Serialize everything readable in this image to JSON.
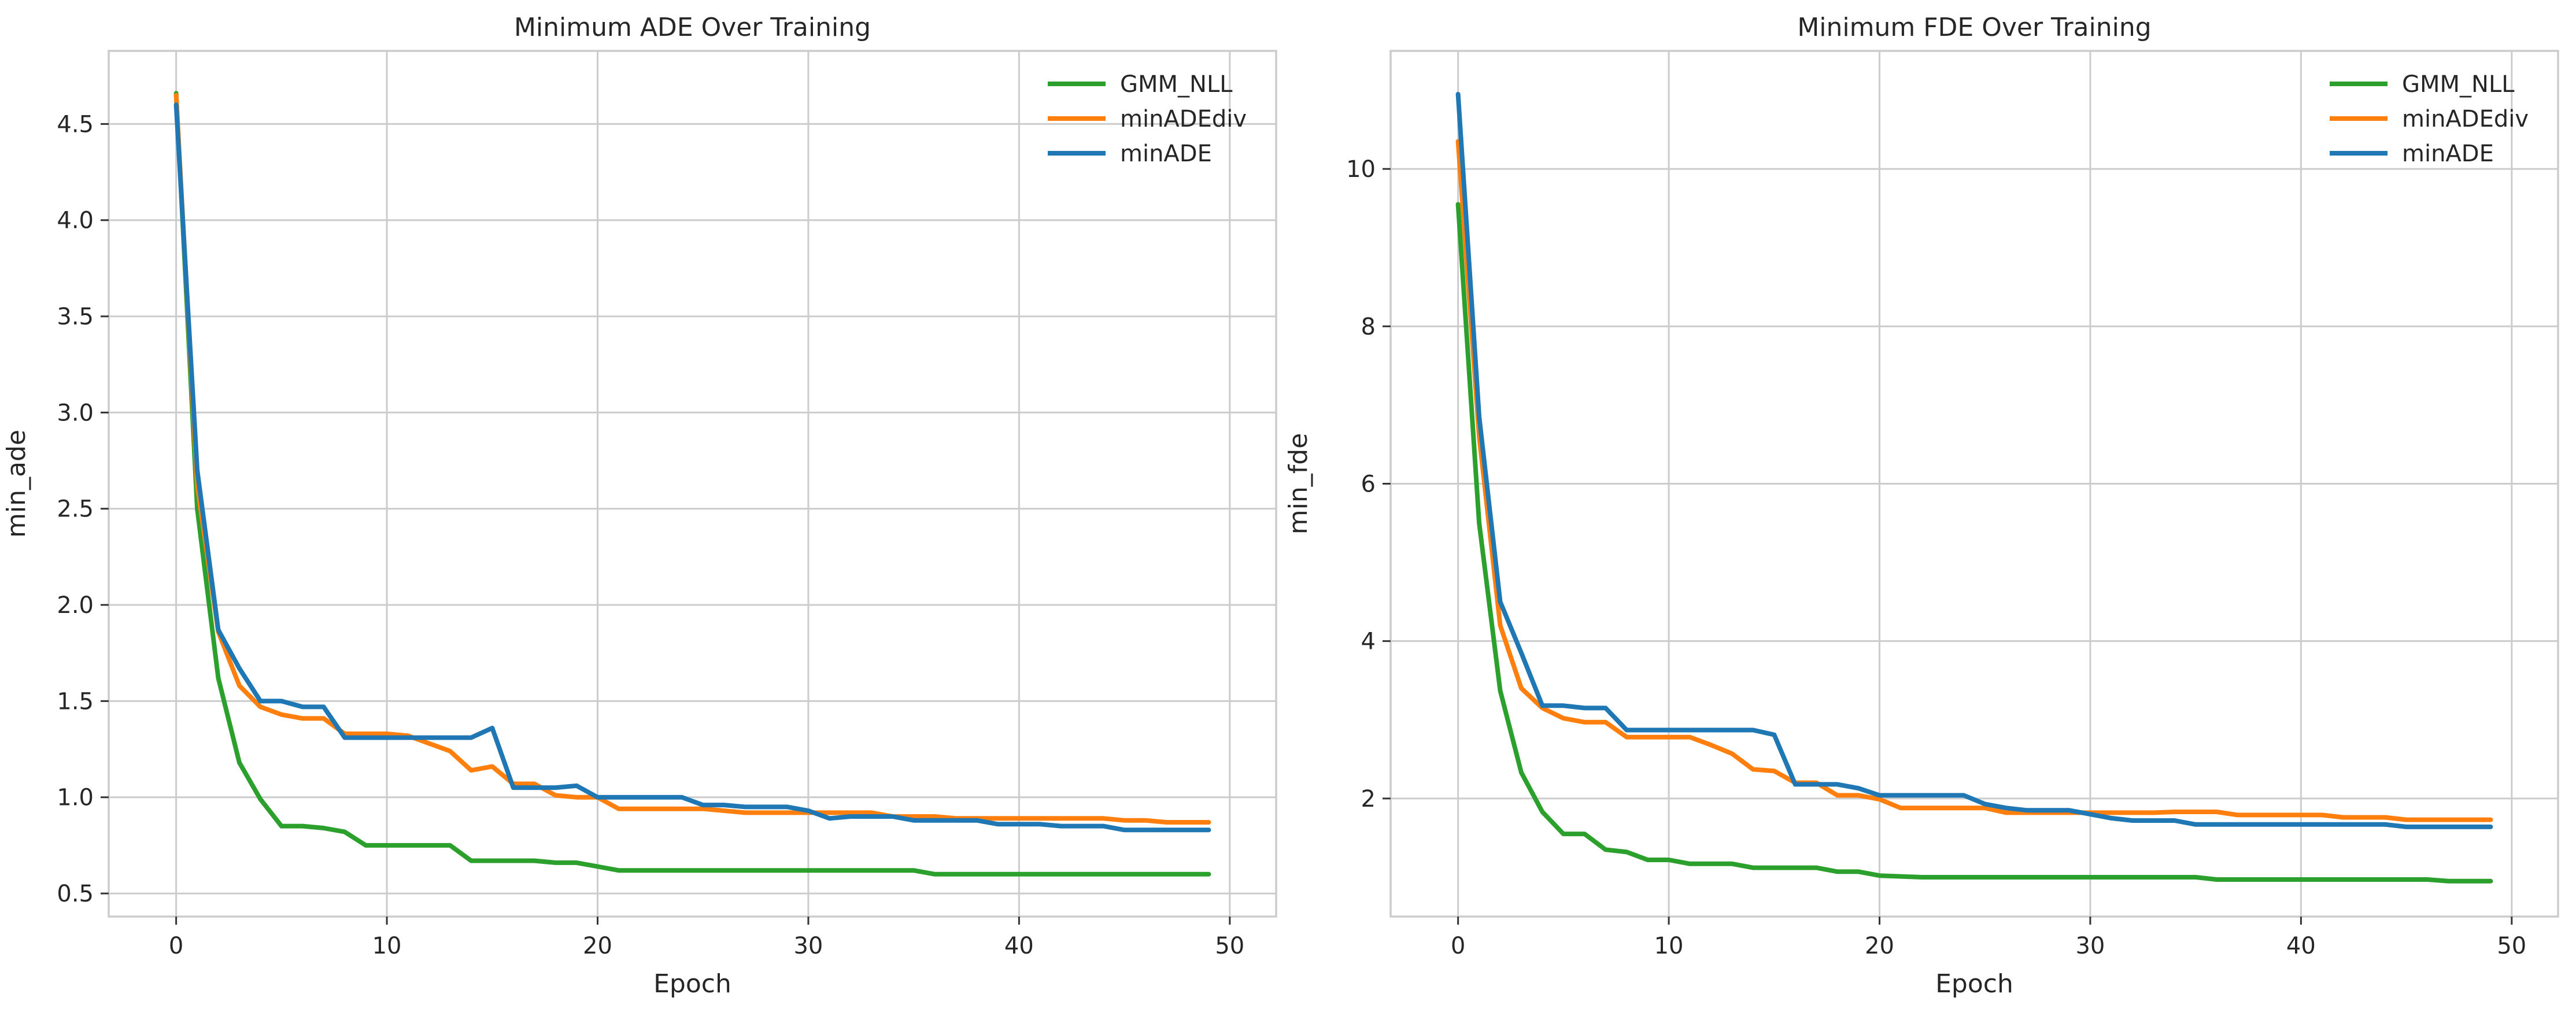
{
  "chart_data": [
    {
      "type": "line",
      "title": "Minimum ADE Over Training",
      "xlabel": "Epoch",
      "ylabel": "min_ade",
      "xlim": [
        -3.2,
        52.2
      ],
      "ylim": [
        0.38,
        4.88
      ],
      "xticks": [
        0,
        10,
        20,
        30,
        40,
        50
      ],
      "yticks": [
        0.5,
        1.0,
        1.5,
        2.0,
        2.5,
        3.0,
        3.5,
        4.0,
        4.5
      ],
      "ytick_labels": [
        "0.5",
        "1.0",
        "1.5",
        "2.0",
        "2.5",
        "3.0",
        "3.5",
        "4.0",
        "4.5"
      ],
      "grid": true,
      "legend_position": "top-right",
      "x": [
        0,
        1,
        2,
        3,
        4,
        5,
        6,
        7,
        8,
        9,
        10,
        11,
        12,
        13,
        14,
        15,
        16,
        17,
        18,
        19,
        20,
        21,
        22,
        23,
        24,
        25,
        26,
        27,
        28,
        29,
        30,
        31,
        32,
        33,
        34,
        35,
        36,
        37,
        38,
        39,
        40,
        41,
        42,
        43,
        44,
        45,
        46,
        47,
        48,
        49
      ],
      "series": [
        {
          "name": "GMM_NLL",
          "color": "#2ca02c",
          "values": [
            4.66,
            2.5,
            1.62,
            1.18,
            0.99,
            0.85,
            0.85,
            0.84,
            0.82,
            0.75,
            0.75,
            0.75,
            0.75,
            0.75,
            0.67,
            0.67,
            0.67,
            0.67,
            0.66,
            0.66,
            0.64,
            0.62,
            0.62,
            0.62,
            0.62,
            0.62,
            0.62,
            0.62,
            0.62,
            0.62,
            0.62,
            0.62,
            0.62,
            0.62,
            0.62,
            0.62,
            0.6,
            0.6,
            0.6,
            0.6,
            0.6,
            0.6,
            0.6,
            0.6,
            0.6,
            0.6,
            0.6,
            0.6,
            0.6,
            0.6
          ]
        },
        {
          "name": "minADEdiv",
          "color": "#ff7f0e",
          "values": [
            4.65,
            2.62,
            1.86,
            1.58,
            1.47,
            1.43,
            1.41,
            1.41,
            1.33,
            1.33,
            1.33,
            1.32,
            1.28,
            1.24,
            1.14,
            1.16,
            1.07,
            1.07,
            1.01,
            1.0,
            1.0,
            0.94,
            0.94,
            0.94,
            0.94,
            0.94,
            0.93,
            0.92,
            0.92,
            0.92,
            0.92,
            0.92,
            0.92,
            0.92,
            0.9,
            0.9,
            0.9,
            0.89,
            0.89,
            0.89,
            0.89,
            0.89,
            0.89,
            0.89,
            0.89,
            0.88,
            0.88,
            0.87,
            0.87,
            0.87
          ]
        },
        {
          "name": "minADE",
          "color": "#1f77b4",
          "values": [
            4.6,
            2.7,
            1.87,
            1.67,
            1.5,
            1.5,
            1.47,
            1.47,
            1.31,
            1.31,
            1.31,
            1.31,
            1.31,
            1.31,
            1.31,
            1.36,
            1.05,
            1.05,
            1.05,
            1.06,
            1.0,
            1.0,
            1.0,
            1.0,
            1.0,
            0.96,
            0.96,
            0.95,
            0.95,
            0.95,
            0.93,
            0.89,
            0.9,
            0.9,
            0.9,
            0.88,
            0.88,
            0.88,
            0.88,
            0.86,
            0.86,
            0.86,
            0.85,
            0.85,
            0.85,
            0.83,
            0.83,
            0.83,
            0.83,
            0.83
          ]
        }
      ]
    },
    {
      "type": "line",
      "title": "Minimum FDE Over Training",
      "xlabel": "Epoch",
      "ylabel": "min_fde",
      "xlim": [
        -3.2,
        52.2
      ],
      "ylim": [
        0.5,
        11.5
      ],
      "xticks": [
        0,
        10,
        20,
        30,
        40,
        50
      ],
      "yticks": [
        2,
        4,
        6,
        8,
        10
      ],
      "ytick_labels": [
        "2",
        "4",
        "6",
        "8",
        "10"
      ],
      "grid": true,
      "legend_position": "top-right",
      "x": [
        0,
        1,
        2,
        3,
        4,
        5,
        6,
        7,
        8,
        9,
        10,
        11,
        12,
        13,
        14,
        15,
        16,
        17,
        18,
        19,
        20,
        21,
        22,
        23,
        24,
        25,
        26,
        27,
        28,
        29,
        30,
        31,
        32,
        33,
        34,
        35,
        36,
        37,
        38,
        39,
        40,
        41,
        42,
        43,
        44,
        45,
        46,
        47,
        48,
        49
      ],
      "series": [
        {
          "name": "GMM_NLL",
          "color": "#2ca02c",
          "values": [
            9.55,
            5.5,
            3.37,
            2.33,
            1.83,
            1.55,
            1.55,
            1.35,
            1.32,
            1.22,
            1.22,
            1.17,
            1.17,
            1.17,
            1.12,
            1.12,
            1.12,
            1.12,
            1.07,
            1.07,
            1.02,
            1.01,
            1.0,
            1.0,
            1.0,
            1.0,
            1.0,
            1.0,
            1.0,
            1.0,
            1.0,
            1.0,
            1.0,
            1.0,
            1.0,
            1.0,
            0.97,
            0.97,
            0.97,
            0.97,
            0.97,
            0.97,
            0.97,
            0.97,
            0.97,
            0.97,
            0.97,
            0.95,
            0.95,
            0.95
          ]
        },
        {
          "name": "minADEdiv",
          "color": "#ff7f0e",
          "values": [
            10.35,
            6.6,
            4.2,
            3.4,
            3.15,
            3.02,
            2.97,
            2.97,
            2.78,
            2.78,
            2.78,
            2.78,
            2.68,
            2.57,
            2.37,
            2.35,
            2.2,
            2.2,
            2.04,
            2.04,
            1.99,
            1.88,
            1.88,
            1.88,
            1.88,
            1.88,
            1.82,
            1.82,
            1.82,
            1.82,
            1.82,
            1.82,
            1.82,
            1.82,
            1.83,
            1.83,
            1.83,
            1.79,
            1.79,
            1.79,
            1.79,
            1.79,
            1.76,
            1.76,
            1.76,
            1.73,
            1.73,
            1.73,
            1.73,
            1.73
          ]
        },
        {
          "name": "minADE",
          "color": "#1f77b4",
          "values": [
            10.95,
            6.85,
            4.5,
            3.85,
            3.18,
            3.18,
            3.15,
            3.15,
            2.87,
            2.87,
            2.87,
            2.87,
            2.87,
            2.87,
            2.87,
            2.81,
            2.18,
            2.18,
            2.18,
            2.13,
            2.04,
            2.04,
            2.04,
            2.04,
            2.04,
            1.93,
            1.88,
            1.85,
            1.85,
            1.85,
            1.8,
            1.75,
            1.72,
            1.72,
            1.72,
            1.67,
            1.67,
            1.67,
            1.67,
            1.67,
            1.67,
            1.67,
            1.67,
            1.67,
            1.67,
            1.64,
            1.64,
            1.64,
            1.64,
            1.64
          ]
        }
      ]
    }
  ]
}
